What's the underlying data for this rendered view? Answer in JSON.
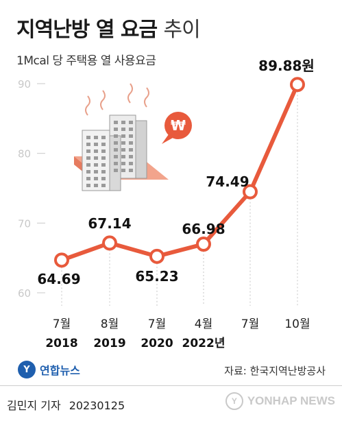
{
  "title_bold": "지역난방 열 요금",
  "title_light": "추이",
  "subtitle": "1Mcal 당 주택용 열 사용요금",
  "currency_symbol": "₩",
  "chart_data": {
    "type": "line",
    "categories": [
      "7월\n2018",
      "8월\n2019",
      "7월\n2020",
      "4월\n2022년",
      "7월",
      "10월"
    ],
    "category_month": [
      "7월",
      "8월",
      "7월",
      "4월",
      "7월",
      "10월"
    ],
    "category_year": [
      "2018",
      "2019",
      "2020",
      "2022년",
      "",
      ""
    ],
    "series": [
      {
        "values": [
          64.69,
          67.14,
          65.23,
          66.98,
          74.49,
          89.88
        ]
      }
    ],
    "value_labels": [
      "64.69",
      "67.14",
      "65.23",
      "66.98",
      "74.49",
      "89.88원"
    ],
    "yticks": [
      60,
      70,
      80,
      90
    ],
    "ylim": [
      60,
      90
    ],
    "grid": false,
    "colors": {
      "line": "#e85a3c",
      "marker_fill": "#ffffff",
      "tick": "#c8c8c8",
      "guide": "#d8d8d8"
    }
  },
  "footer": {
    "logo_text": "연합뉴스",
    "source": "자료: 한국지역난방공사",
    "byline_name": "김민지 기자",
    "byline_date": "20230125",
    "watermark": "YONHAP NEWS"
  }
}
